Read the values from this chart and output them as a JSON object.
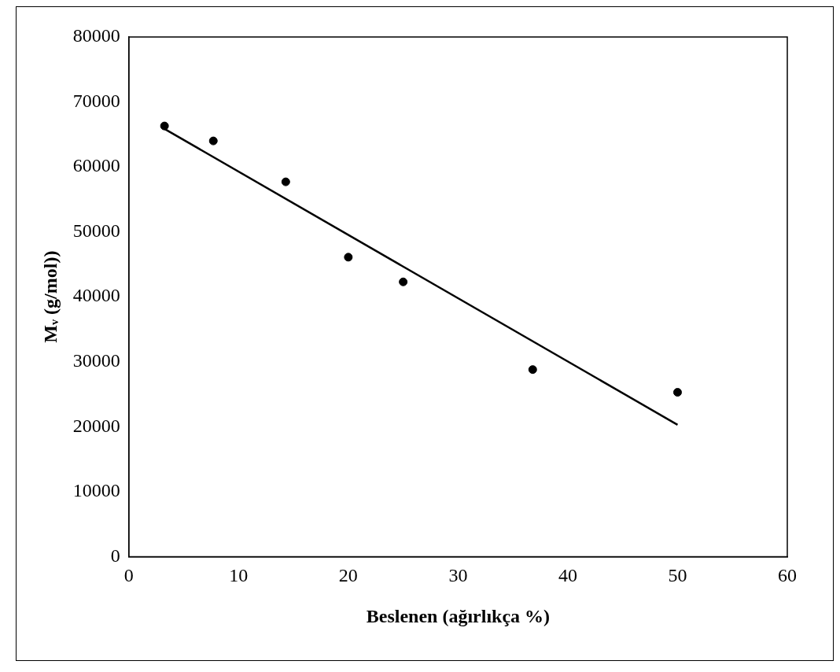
{
  "chart_data": {
    "type": "scatter",
    "xlabel": "Beslenen (ağırlıkça %)",
    "ylabel": "Mᵥ (g/mol))",
    "series": [
      {
        "type": "scatter",
        "marker": "circle",
        "color": "#000000",
        "x": [
          3.25,
          7.7,
          14.3,
          20.0,
          25.0,
          36.8,
          50.0
        ],
        "values": [
          66300,
          64000,
          57700,
          46100,
          42300,
          28800,
          25300
        ]
      },
      {
        "type": "line",
        "color": "#000000",
        "x": [
          3.2,
          50
        ],
        "values": [
          65900,
          20300
        ]
      }
    ],
    "xlim": [
      0,
      60
    ],
    "xticks": [
      0,
      10,
      20,
      30,
      40,
      50,
      60
    ],
    "ylim": [
      0,
      80000
    ],
    "yticks": [
      0,
      10000,
      20000,
      30000,
      40000,
      50000,
      60000,
      70000,
      80000
    ]
  }
}
